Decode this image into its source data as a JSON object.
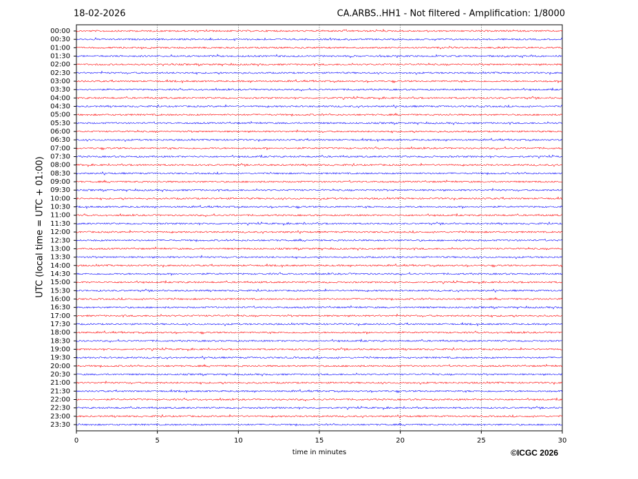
{
  "chart_data": {
    "type": "helicorder",
    "date": "18-02-2026",
    "title": "CA.ARBS..HH1 - Not filtered - Amplification: 1/8000",
    "ylabel": "UTC (local time = UTC + 01:00)",
    "xlabel": "time in minutes",
    "copyright": "©ICGC 2026",
    "xlim": [
      0,
      30
    ],
    "xticks": [
      0,
      5,
      10,
      15,
      20,
      25,
      30
    ],
    "grid": true,
    "colors": [
      "#ff0000",
      "#0000ff"
    ],
    "categories": [
      "00:00",
      "00:30",
      "01:00",
      "01:30",
      "02:00",
      "02:30",
      "03:00",
      "03:30",
      "04:00",
      "04:30",
      "05:00",
      "05:30",
      "06:00",
      "06:30",
      "07:00",
      "07:30",
      "08:00",
      "08:30",
      "09:00",
      "09:30",
      "10:00",
      "10:30",
      "11:00",
      "11:30",
      "12:00",
      "12:30",
      "13:00",
      "13:30",
      "14:00",
      "14:30",
      "15:00",
      "15:30",
      "16:00",
      "16:30",
      "17:00",
      "17:30",
      "18:00",
      "18:30",
      "19:00",
      "19:30",
      "20:00",
      "20:30",
      "21:00",
      "21:30",
      "22:00",
      "22:30",
      "23:00",
      "23:30"
    ]
  }
}
